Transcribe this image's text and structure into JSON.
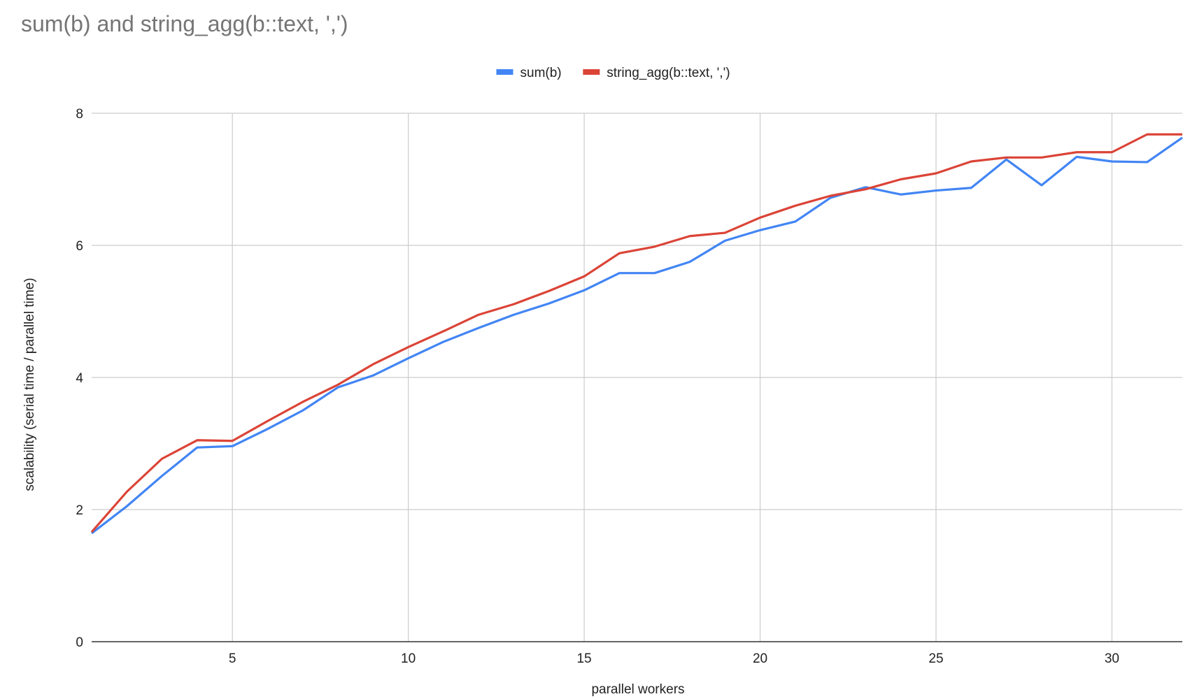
{
  "chart_data": {
    "type": "line",
    "title": "sum(b) and string_agg(b::text, ',')",
    "xlabel": "parallel workers",
    "ylabel": "scalability (serial time / parallel time)",
    "xlim": [
      1,
      32
    ],
    "ylim": [
      0,
      8
    ],
    "x_ticks": [
      5,
      10,
      15,
      20,
      25,
      30
    ],
    "y_ticks": [
      0,
      2,
      4,
      6,
      8
    ],
    "grid": true,
    "legend_position": "top-center",
    "x": [
      1,
      2,
      3,
      4,
      5,
      6,
      7,
      8,
      9,
      10,
      11,
      12,
      13,
      14,
      15,
      16,
      17,
      18,
      19,
      20,
      21,
      22,
      23,
      24,
      25,
      26,
      27,
      28,
      29,
      30,
      31,
      32
    ],
    "series": [
      {
        "name": "sum(b)",
        "color": "#4285f4",
        "values": [
          1.64,
          2.05,
          2.51,
          2.94,
          2.96,
          3.22,
          3.5,
          3.85,
          4.03,
          4.29,
          4.54,
          4.75,
          4.95,
          5.12,
          5.32,
          5.58,
          5.58,
          5.75,
          6.07,
          6.23,
          6.36,
          6.72,
          6.88,
          6.77,
          6.83,
          6.87,
          7.3,
          6.91,
          7.34,
          7.27,
          7.26,
          7.63
        ]
      },
      {
        "name": "string_agg(b::text, ',')",
        "color": "#db4437",
        "values": [
          1.66,
          2.27,
          2.77,
          3.05,
          3.04,
          3.34,
          3.63,
          3.89,
          4.2,
          4.46,
          4.7,
          4.95,
          5.11,
          5.31,
          5.53,
          5.88,
          5.98,
          6.14,
          6.19,
          6.42,
          6.6,
          6.75,
          6.85,
          7.0,
          7.09,
          7.27,
          7.33,
          7.33,
          7.41,
          7.41,
          7.68,
          7.68
        ]
      }
    ]
  }
}
